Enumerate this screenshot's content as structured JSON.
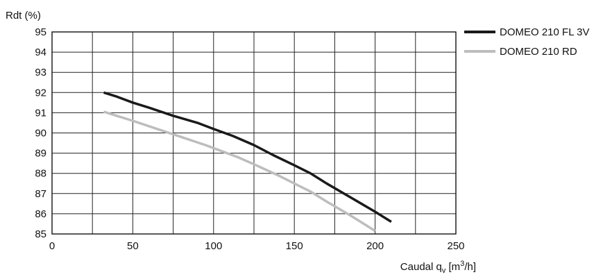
{
  "chart_data": {
    "type": "line",
    "ylabel": "Rdt (%)",
    "xlabel": {
      "prefix": "Caudal q",
      "sub": "v",
      "unit_pre": " [m",
      "sup": "3",
      "unit_post": "/h]"
    },
    "xlim": [
      0,
      250
    ],
    "ylim": [
      85,
      95
    ],
    "x_ticks": [
      "0",
      "50",
      "100",
      "150",
      "200",
      "250"
    ],
    "y_ticks": [
      "85",
      "86",
      "87",
      "88",
      "89",
      "90",
      "91",
      "92",
      "93",
      "94",
      "95"
    ],
    "grid": true,
    "legend_position": "top-right, outside",
    "series": [
      {
        "name": "DOMEO 210 FL 3V",
        "color": "#1a1a1a",
        "points": [
          [
            32,
            92.0
          ],
          [
            40,
            91.8
          ],
          [
            50,
            91.5
          ],
          [
            60,
            91.25
          ],
          [
            75,
            90.85
          ],
          [
            90,
            90.5
          ],
          [
            100,
            90.2
          ],
          [
            112,
            89.85
          ],
          [
            125,
            89.4
          ],
          [
            137,
            88.9
          ],
          [
            150,
            88.4
          ],
          [
            160,
            88.0
          ],
          [
            170,
            87.5
          ],
          [
            185,
            86.8
          ],
          [
            200,
            86.1
          ],
          [
            210,
            85.6
          ]
        ]
      },
      {
        "name": "DOMEO 210 RD",
        "color": "#bdbdbd",
        "points": [
          [
            32,
            91.05
          ],
          [
            40,
            90.85
          ],
          [
            50,
            90.6
          ],
          [
            65,
            90.2
          ],
          [
            80,
            89.8
          ],
          [
            95,
            89.4
          ],
          [
            105,
            89.1
          ],
          [
            115,
            88.8
          ],
          [
            125,
            88.45
          ],
          [
            140,
            87.9
          ],
          [
            150,
            87.5
          ],
          [
            160,
            87.1
          ],
          [
            170,
            86.6
          ],
          [
            185,
            85.9
          ],
          [
            200,
            85.15
          ]
        ]
      }
    ]
  }
}
